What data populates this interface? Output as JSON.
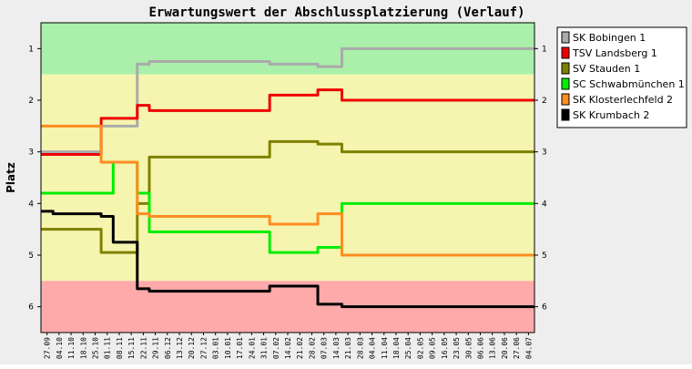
{
  "chart_data": {
    "type": "line",
    "title": "Erwartungswert der Abschlussplatzierung (Verlauf)",
    "ylabel": "Platz",
    "xlabel": "",
    "ylim": [
      0.5,
      6.5
    ],
    "y_inverted": true,
    "yticks": [
      "1",
      "2",
      "3",
      "4",
      "5",
      "6"
    ],
    "grid": false,
    "legend_position": "right",
    "bands": [
      {
        "from": 0.5,
        "to": 1.5,
        "color": "#aaf0aa"
      },
      {
        "from": 1.5,
        "to": 5.5,
        "color": "#f5f5b0"
      },
      {
        "from": 5.5,
        "to": 6.5,
        "color": "#ffaaaa"
      }
    ],
    "categories": [
      "27.09",
      "04.10",
      "11.10",
      "18.10",
      "25.10",
      "01.11",
      "08.11",
      "15.11",
      "22.11",
      "29.11",
      "06.12",
      "13.12",
      "20.12",
      "27.12",
      "03.01",
      "10.01",
      "17.01",
      "24.01",
      "31.01",
      "07.02",
      "14.02",
      "21.02",
      "28.02",
      "07.03",
      "14.03",
      "21.03",
      "28.03",
      "04.04",
      "11.04",
      "18.04",
      "25.04",
      "02.05",
      "09.05",
      "16.05",
      "23.05",
      "30.05",
      "06.06",
      "13.06",
      "20.06",
      "27.06",
      "04.07"
    ],
    "series": [
      {
        "name": "SK Bobingen 1",
        "color": "#aaaaaa",
        "values": [
          3.0,
          3.0,
          3.0,
          3.0,
          3.0,
          2.5,
          2.5,
          2.5,
          1.3,
          1.25,
          1.25,
          1.25,
          1.25,
          1.25,
          1.25,
          1.25,
          1.25,
          1.25,
          1.25,
          1.3,
          1.3,
          1.3,
          1.3,
          1.35,
          1.35,
          1.0,
          1.0,
          1.0,
          1.0,
          1.0,
          1.0,
          1.0,
          1.0,
          1.0,
          1.0,
          1.0,
          1.0,
          1.0,
          1.0,
          1.0,
          1.0
        ]
      },
      {
        "name": "TSV Landsberg 1",
        "color": "#ee0000",
        "values": [
          3.05,
          3.05,
          3.05,
          3.05,
          3.05,
          2.35,
          2.35,
          2.35,
          2.1,
          2.2,
          2.2,
          2.2,
          2.2,
          2.2,
          2.2,
          2.2,
          2.2,
          2.2,
          2.2,
          1.9,
          1.9,
          1.9,
          1.9,
          1.8,
          1.8,
          2.0,
          2.0,
          2.0,
          2.0,
          2.0,
          2.0,
          2.0,
          2.0,
          2.0,
          2.0,
          2.0,
          2.0,
          2.0,
          2.0,
          2.0,
          2.0
        ]
      },
      {
        "name": "SV Stauden 1",
        "color": "#808000",
        "values": [
          4.5,
          4.5,
          4.5,
          4.5,
          4.5,
          4.95,
          4.95,
          4.95,
          4.0,
          3.1,
          3.1,
          3.1,
          3.1,
          3.1,
          3.1,
          3.1,
          3.1,
          3.1,
          3.1,
          2.8,
          2.8,
          2.8,
          2.8,
          2.85,
          2.85,
          3.0,
          3.0,
          3.0,
          3.0,
          3.0,
          3.0,
          3.0,
          3.0,
          3.0,
          3.0,
          3.0,
          3.0,
          3.0,
          3.0,
          3.0,
          3.0
        ]
      },
      {
        "name": "SC Schwabmünchen 1",
        "color": "#00ee00",
        "values": [
          3.8,
          3.8,
          3.8,
          3.8,
          3.8,
          3.8,
          3.2,
          3.2,
          3.8,
          4.55,
          4.55,
          4.55,
          4.55,
          4.55,
          4.55,
          4.55,
          4.55,
          4.55,
          4.55,
          4.95,
          4.95,
          4.95,
          4.95,
          4.85,
          4.85,
          4.0,
          4.0,
          4.0,
          4.0,
          4.0,
          4.0,
          4.0,
          4.0,
          4.0,
          4.0,
          4.0,
          4.0,
          4.0,
          4.0,
          4.0,
          4.0
        ]
      },
      {
        "name": "SK Klosterlechfeld 2",
        "color": "#ff8c20",
        "values": [
          2.5,
          2.5,
          2.5,
          2.5,
          2.5,
          3.2,
          3.2,
          3.2,
          4.2,
          4.25,
          4.25,
          4.25,
          4.25,
          4.25,
          4.25,
          4.25,
          4.25,
          4.25,
          4.25,
          4.4,
          4.4,
          4.4,
          4.4,
          4.2,
          4.2,
          5.0,
          5.0,
          5.0,
          5.0,
          5.0,
          5.0,
          5.0,
          5.0,
          5.0,
          5.0,
          5.0,
          5.0,
          5.0,
          5.0,
          5.0,
          5.0
        ]
      },
      {
        "name": "SK Krumbach 2",
        "color": "#000000",
        "values": [
          4.15,
          4.2,
          4.2,
          4.2,
          4.2,
          4.25,
          4.75,
          4.75,
          5.65,
          5.7,
          5.7,
          5.7,
          5.7,
          5.7,
          5.7,
          5.7,
          5.7,
          5.7,
          5.7,
          5.6,
          5.6,
          5.6,
          5.6,
          5.95,
          5.95,
          6.0,
          6.0,
          6.0,
          6.0,
          6.0,
          6.0,
          6.0,
          6.0,
          6.0,
          6.0,
          6.0,
          6.0,
          6.0,
          6.0,
          6.0,
          6.0
        ]
      }
    ]
  }
}
